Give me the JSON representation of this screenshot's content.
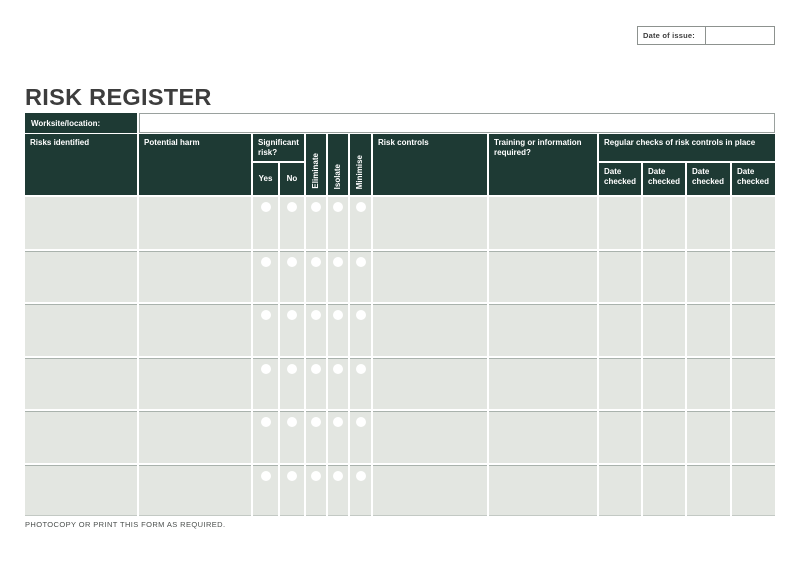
{
  "page": {
    "title": "RISK REGISTER",
    "footer": "PHOTOCOPY OR PRINT THIS FORM AS REQUIRED."
  },
  "date_of_issue": {
    "label": "Date of issue:",
    "value": ""
  },
  "worksite": {
    "label": "Worksite/location:",
    "value": ""
  },
  "table": {
    "headers": {
      "risks_identified": "Risks identified",
      "potential_harm": "Potential harm",
      "significant_risk": "Significant risk?",
      "yes": "Yes",
      "no": "No",
      "eliminate": "Eliminate",
      "isolate": "Isolate",
      "minimise": "Minimise",
      "risk_controls": "Risk controls",
      "training": "Training or information required?",
      "regular_checks": "Regular checks of risk controls in place",
      "date_checked": "Date checked"
    },
    "body": {
      "rows": 6,
      "columns": 13,
      "radio_column_indexes": [
        2,
        3,
        4,
        5,
        6
      ],
      "radio_columns": [
        "yes",
        "no",
        "eliminate",
        "isolate",
        "minimise"
      ]
    }
  },
  "colors": {
    "header_bg": "#1e3a34",
    "cell_bg": "#e3e6e1",
    "row_line": "#a9b2ac",
    "title_text": "#3d3d3d"
  }
}
